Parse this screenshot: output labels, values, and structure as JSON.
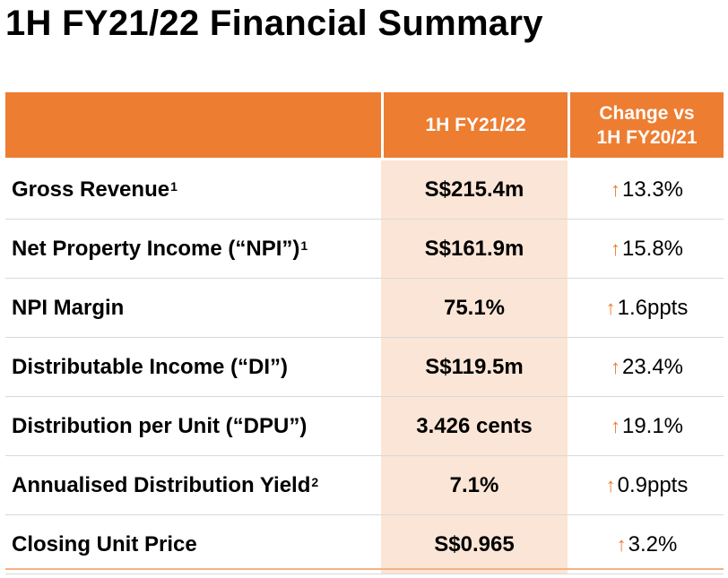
{
  "title": "1H FY21/22 Financial Summary",
  "header": {
    "current_period": "1H FY21/22",
    "change_line1": "Change vs",
    "change_line2": "1H FY20/21"
  },
  "rows": [
    {
      "label": "Gross Revenue",
      "sup": "1",
      "value": "S$215.4m",
      "change": "13.3%"
    },
    {
      "label": "Net Property Income (“NPI”)",
      "sup": "1",
      "value": "S$161.9m",
      "change": "15.8%"
    },
    {
      "label": "NPI Margin",
      "sup": "",
      "value": "75.1%",
      "change": "1.6ppts"
    },
    {
      "label": "Distributable Income (“DI”)",
      "sup": "",
      "value": "S$119.5m",
      "change": "23.4%"
    },
    {
      "label": "Distribution per Unit (“DPU”)",
      "sup": "",
      "value": "3.426 cents",
      "change": "19.1%"
    },
    {
      "label": "Annualised Distribution Yield",
      "sup": "2",
      "value": "7.1%",
      "change": "0.9ppts"
    },
    {
      "label": "Closing Unit Price",
      "sup": "",
      "value": "S$0.965",
      "change": "3.2%"
    }
  ],
  "icons": {
    "change_direction": "up-arrow-icon"
  },
  "colors": {
    "accent": "#ed7d31",
    "highlight_column": "#fbe5d6"
  }
}
